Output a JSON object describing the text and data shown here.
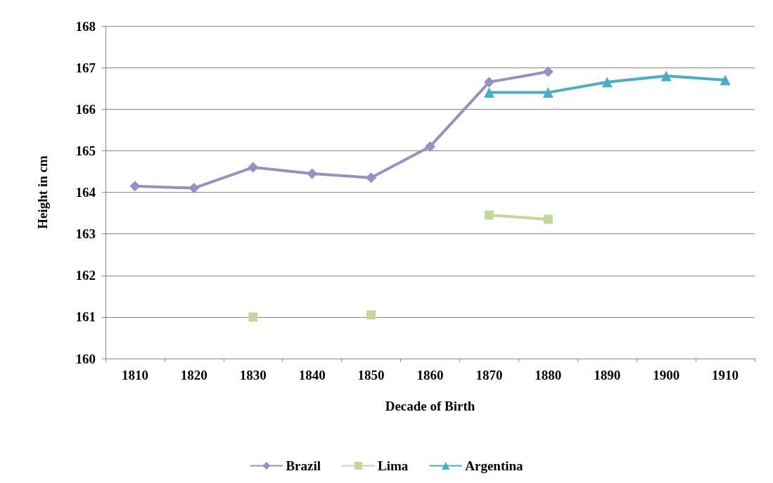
{
  "chart_data": {
    "type": "line",
    "xlabel": "Decade of Birth",
    "ylabel": "Height in cm",
    "categories": [
      "1810",
      "1820",
      "1830",
      "1840",
      "1850",
      "1860",
      "1870",
      "1880",
      "1890",
      "1900",
      "1910"
    ],
    "series": [
      {
        "name": "Brazil",
        "color": "#9b8fc1",
        "marker": "diamond",
        "values": [
          164.15,
          164.1,
          164.6,
          164.45,
          164.35,
          165.1,
          166.65,
          166.9,
          null,
          null,
          null
        ]
      },
      {
        "name": "Lima",
        "color": "#c3d69b",
        "marker": "square",
        "values": [
          null,
          null,
          161.0,
          null,
          161.05,
          null,
          163.45,
          163.35,
          null,
          null,
          null
        ]
      },
      {
        "name": "Argentina",
        "color": "#4bacc6",
        "marker": "triangle",
        "values": [
          null,
          null,
          null,
          null,
          null,
          null,
          166.4,
          166.4,
          166.65,
          166.8,
          166.7
        ]
      }
    ],
    "ylim": [
      160,
      168
    ],
    "yticks": [
      160,
      161,
      162,
      163,
      164,
      165,
      166,
      167,
      168
    ],
    "grid": "y",
    "legend": "bottom",
    "line_style": "solid"
  }
}
